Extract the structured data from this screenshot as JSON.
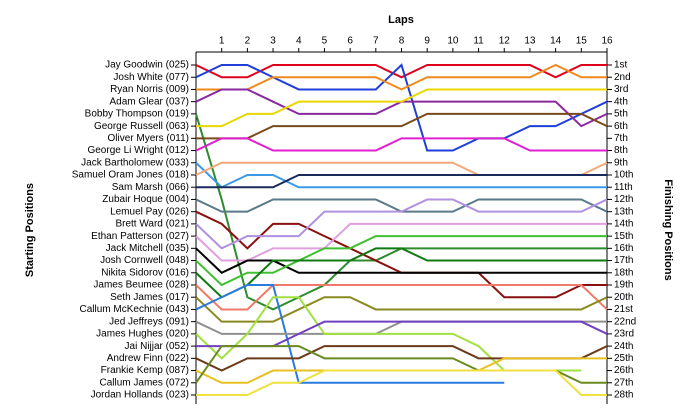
{
  "chart_data": {
    "type": "line",
    "title": "Laps",
    "y_label": "Starting Positions",
    "y2_label": "Finishing Positions",
    "x": [
      0,
      1,
      2,
      3,
      4,
      5,
      6,
      7,
      8,
      9,
      10,
      11,
      12,
      13,
      14,
      15,
      16
    ],
    "xlim": [
      0,
      16
    ],
    "xticks": [
      1,
      2,
      3,
      4,
      5,
      6,
      7,
      8,
      9,
      10,
      11,
      12,
      13,
      14,
      15,
      16
    ],
    "ylim": [
      1,
      28
    ],
    "y_inverted": true,
    "y2lim": [
      1,
      28
    ],
    "y2ticks": [
      {
        "value": 1,
        "label": "1st"
      },
      {
        "value": 2,
        "label": "2nd"
      },
      {
        "value": 3,
        "label": "3rd"
      },
      {
        "value": 4,
        "label": "4th"
      },
      {
        "value": 5,
        "label": "5th"
      },
      {
        "value": 6,
        "label": "6th"
      },
      {
        "value": 7,
        "label": "7th"
      },
      {
        "value": 8,
        "label": "8th"
      },
      {
        "value": 9,
        "label": "9th"
      },
      {
        "value": 10,
        "label": "10th"
      },
      {
        "value": 11,
        "label": "11th"
      },
      {
        "value": 12,
        "label": "12th"
      },
      {
        "value": 13,
        "label": "13th"
      },
      {
        "value": 14,
        "label": "14th"
      },
      {
        "value": 15,
        "label": "15th"
      },
      {
        "value": 16,
        "label": "16th"
      },
      {
        "value": 17,
        "label": "17th"
      },
      {
        "value": 18,
        "label": "18th"
      },
      {
        "value": 19,
        "label": "19th"
      },
      {
        "value": 20,
        "label": "20th"
      },
      {
        "value": 21,
        "label": "21st"
      },
      {
        "value": 22,
        "label": "22nd"
      },
      {
        "value": 23,
        "label": "23rd"
      },
      {
        "value": 24,
        "label": "24th"
      },
      {
        "value": 25,
        "label": "25th"
      },
      {
        "value": 26,
        "label": "26th"
      },
      {
        "value": 27,
        "label": "27th"
      },
      {
        "value": 28,
        "label": "28th"
      }
    ],
    "series": [
      {
        "name": "Jay Goodwin (025)",
        "color": "#e0001b",
        "values": [
          1,
          2,
          2,
          1,
          1,
          1,
          1,
          1,
          2,
          1,
          1,
          1,
          1,
          1,
          2,
          1,
          1
        ]
      },
      {
        "name": "Josh White (077)",
        "color": "#1f3fd8",
        "values": [
          2,
          1,
          1,
          2,
          3,
          3,
          3,
          3,
          1,
          8,
          8,
          7,
          7,
          6,
          6,
          5,
          4
        ]
      },
      {
        "name": "Ryan Norris (009)",
        "color": "#f08a1c",
        "values": [
          3,
          3,
          3,
          2,
          2,
          2,
          2,
          2,
          3,
          2,
          2,
          2,
          2,
          2,
          1,
          2,
          2
        ]
      },
      {
        "name": "Adam Glear (037)",
        "color": "#8a2aa0",
        "values": [
          4,
          3,
          3,
          4,
          5,
          5,
          5,
          5,
          4,
          4,
          4,
          4,
          4,
          4,
          4,
          6,
          5
        ]
      },
      {
        "name": "Bobby Thompson (019)",
        "color": "#2e8b2e",
        "values": [
          5,
          12,
          20,
          21,
          20,
          19,
          17,
          17,
          16,
          16,
          16,
          16,
          16,
          16,
          16,
          16,
          16
        ]
      },
      {
        "name": "George Russell (063)",
        "color": "#e8d800",
        "values": [
          6,
          6,
          5,
          5,
          4,
          4,
          4,
          4,
          4,
          3,
          3,
          3,
          3,
          3,
          3,
          3,
          3
        ]
      },
      {
        "name": "Oliver Myers (011)",
        "color": "#7a4a1a",
        "values": [
          7,
          7,
          7,
          6,
          6,
          6,
          6,
          6,
          6,
          5,
          5,
          5,
          5,
          5,
          5,
          5,
          6
        ]
      },
      {
        "name": "George Li Wright (012)",
        "color": "#e020d0",
        "values": [
          8,
          7,
          7,
          8,
          8,
          8,
          8,
          8,
          7,
          7,
          7,
          7,
          7,
          8,
          8,
          8,
          8
        ]
      },
      {
        "name": "Jack Bartholomew (033)",
        "color": "#3a9ae8",
        "values": [
          9,
          11,
          10,
          10,
          11,
          11,
          11,
          11,
          11,
          11,
          11,
          11,
          11,
          11,
          11,
          11,
          11
        ]
      },
      {
        "name": "Samuel Oram Jones (018)",
        "color": "#f0a878",
        "values": [
          10,
          9,
          9,
          9,
          9,
          9,
          9,
          9,
          9,
          9,
          9,
          10,
          10,
          10,
          10,
          10,
          9
        ]
      },
      {
        "name": "Sam Marsh (066)",
        "color": "#1a2a5a",
        "values": [
          11,
          11,
          11,
          11,
          10,
          10,
          10,
          10,
          10,
          10,
          10,
          10,
          10,
          10,
          10,
          10,
          10
        ]
      },
      {
        "name": "Zubair Hoque (004)",
        "color": "#5a7a8a",
        "values": [
          12,
          13,
          13,
          12,
          12,
          12,
          12,
          12,
          13,
          13,
          13,
          12,
          12,
          12,
          12,
          12,
          13
        ]
      },
      {
        "name": "Lemuel Pay (026)",
        "color": "#8a1010",
        "values": [
          13,
          14,
          16,
          14,
          14,
          15,
          16,
          17,
          18,
          18,
          18,
          18,
          20,
          20,
          20,
          19,
          19
        ]
      },
      {
        "name": "Brett Ward (021)",
        "color": "#b090e0",
        "values": [
          14,
          16,
          15,
          15,
          15,
          13,
          13,
          13,
          13,
          12,
          12,
          13,
          13,
          13,
          13,
          13,
          12
        ]
      },
      {
        "name": "Ethan Patterson (027)",
        "color": "#e0a0e0",
        "values": [
          15,
          17,
          17,
          16,
          16,
          16,
          14,
          14,
          14,
          14,
          14,
          14,
          14,
          14,
          14,
          14,
          14
        ]
      },
      {
        "name": "Jack Mitchell (035)",
        "color": "#000000",
        "values": [
          16,
          18,
          17,
          17,
          18,
          18,
          18,
          18,
          18,
          18,
          18,
          18,
          18,
          18,
          18,
          18,
          18
        ]
      },
      {
        "name": "Josh Cornwell (048)",
        "color": "#40c030",
        "values": [
          17,
          19,
          18,
          18,
          17,
          16,
          16,
          15,
          15,
          15,
          15,
          15,
          15,
          15,
          15,
          15,
          15
        ]
      },
      {
        "name": "Nikita Sidorov (016)",
        "color": "#107a10",
        "values": [
          18,
          20,
          19,
          17,
          17,
          17,
          17,
          16,
          16,
          17,
          17,
          17,
          17,
          17,
          17,
          17,
          17
        ]
      },
      {
        "name": "James Beumee (028)",
        "color": "#f07a6a",
        "values": [
          19,
          21,
          21,
          19,
          19,
          19,
          19,
          19,
          19,
          19,
          19,
          19,
          19,
          19,
          19,
          19,
          21
        ]
      },
      {
        "name": "Seth James (017)",
        "color": "#8a8a20",
        "values": [
          20,
          22,
          22,
          22,
          21,
          20,
          20,
          21,
          21,
          21,
          21,
          21,
          21,
          21,
          21,
          21,
          20
        ]
      },
      {
        "name": "Callum McKechnie (043)",
        "color": "#2a7ae0",
        "values": [
          21,
          20,
          19,
          19,
          27,
          27,
          27,
          27,
          27,
          27,
          27,
          27,
          27,
          null,
          null,
          null,
          null
        ]
      },
      {
        "name": "Jed Jeffreys (091)",
        "color": "#909090",
        "values": [
          22,
          23,
          23,
          23,
          23,
          23,
          23,
          23,
          22,
          22,
          22,
          22,
          22,
          22,
          22,
          22,
          22
        ]
      },
      {
        "name": "James Hughes (020)",
        "color": "#a0e040",
        "values": [
          23,
          25,
          23,
          20,
          20,
          23,
          23,
          23,
          23,
          23,
          23,
          24,
          26,
          26,
          26,
          26,
          null
        ]
      },
      {
        "name": "Jai Nijjar (052)",
        "color": "#7040c0",
        "values": [
          24,
          24,
          24,
          24,
          23,
          22,
          22,
          22,
          22,
          22,
          22,
          22,
          22,
          22,
          22,
          22,
          23
        ]
      },
      {
        "name": "Andrew Finn (022)",
        "color": "#6a3a1a",
        "values": [
          25,
          26,
          25,
          25,
          25,
          24,
          24,
          24,
          24,
          24,
          24,
          25,
          25,
          25,
          25,
          25,
          24
        ]
      },
      {
        "name": "Frankie Kemp (087)",
        "color": "#e8c020",
        "values": [
          26,
          27,
          27,
          26,
          26,
          26,
          26,
          26,
          26,
          26,
          26,
          26,
          25,
          25,
          25,
          25,
          25
        ]
      },
      {
        "name": "Callum James (072)",
        "color": "#6a8a20",
        "values": [
          27,
          24,
          24,
          24,
          24,
          25,
          25,
          25,
          25,
          25,
          25,
          26,
          26,
          26,
          26,
          27,
          27
        ]
      },
      {
        "name": "Jordan Hollands (023)",
        "color": "#f0e040",
        "values": [
          28,
          28,
          28,
          27,
          27,
          26,
          26,
          26,
          26,
          26,
          26,
          26,
          26,
          26,
          26,
          28,
          28
        ]
      }
    ]
  }
}
